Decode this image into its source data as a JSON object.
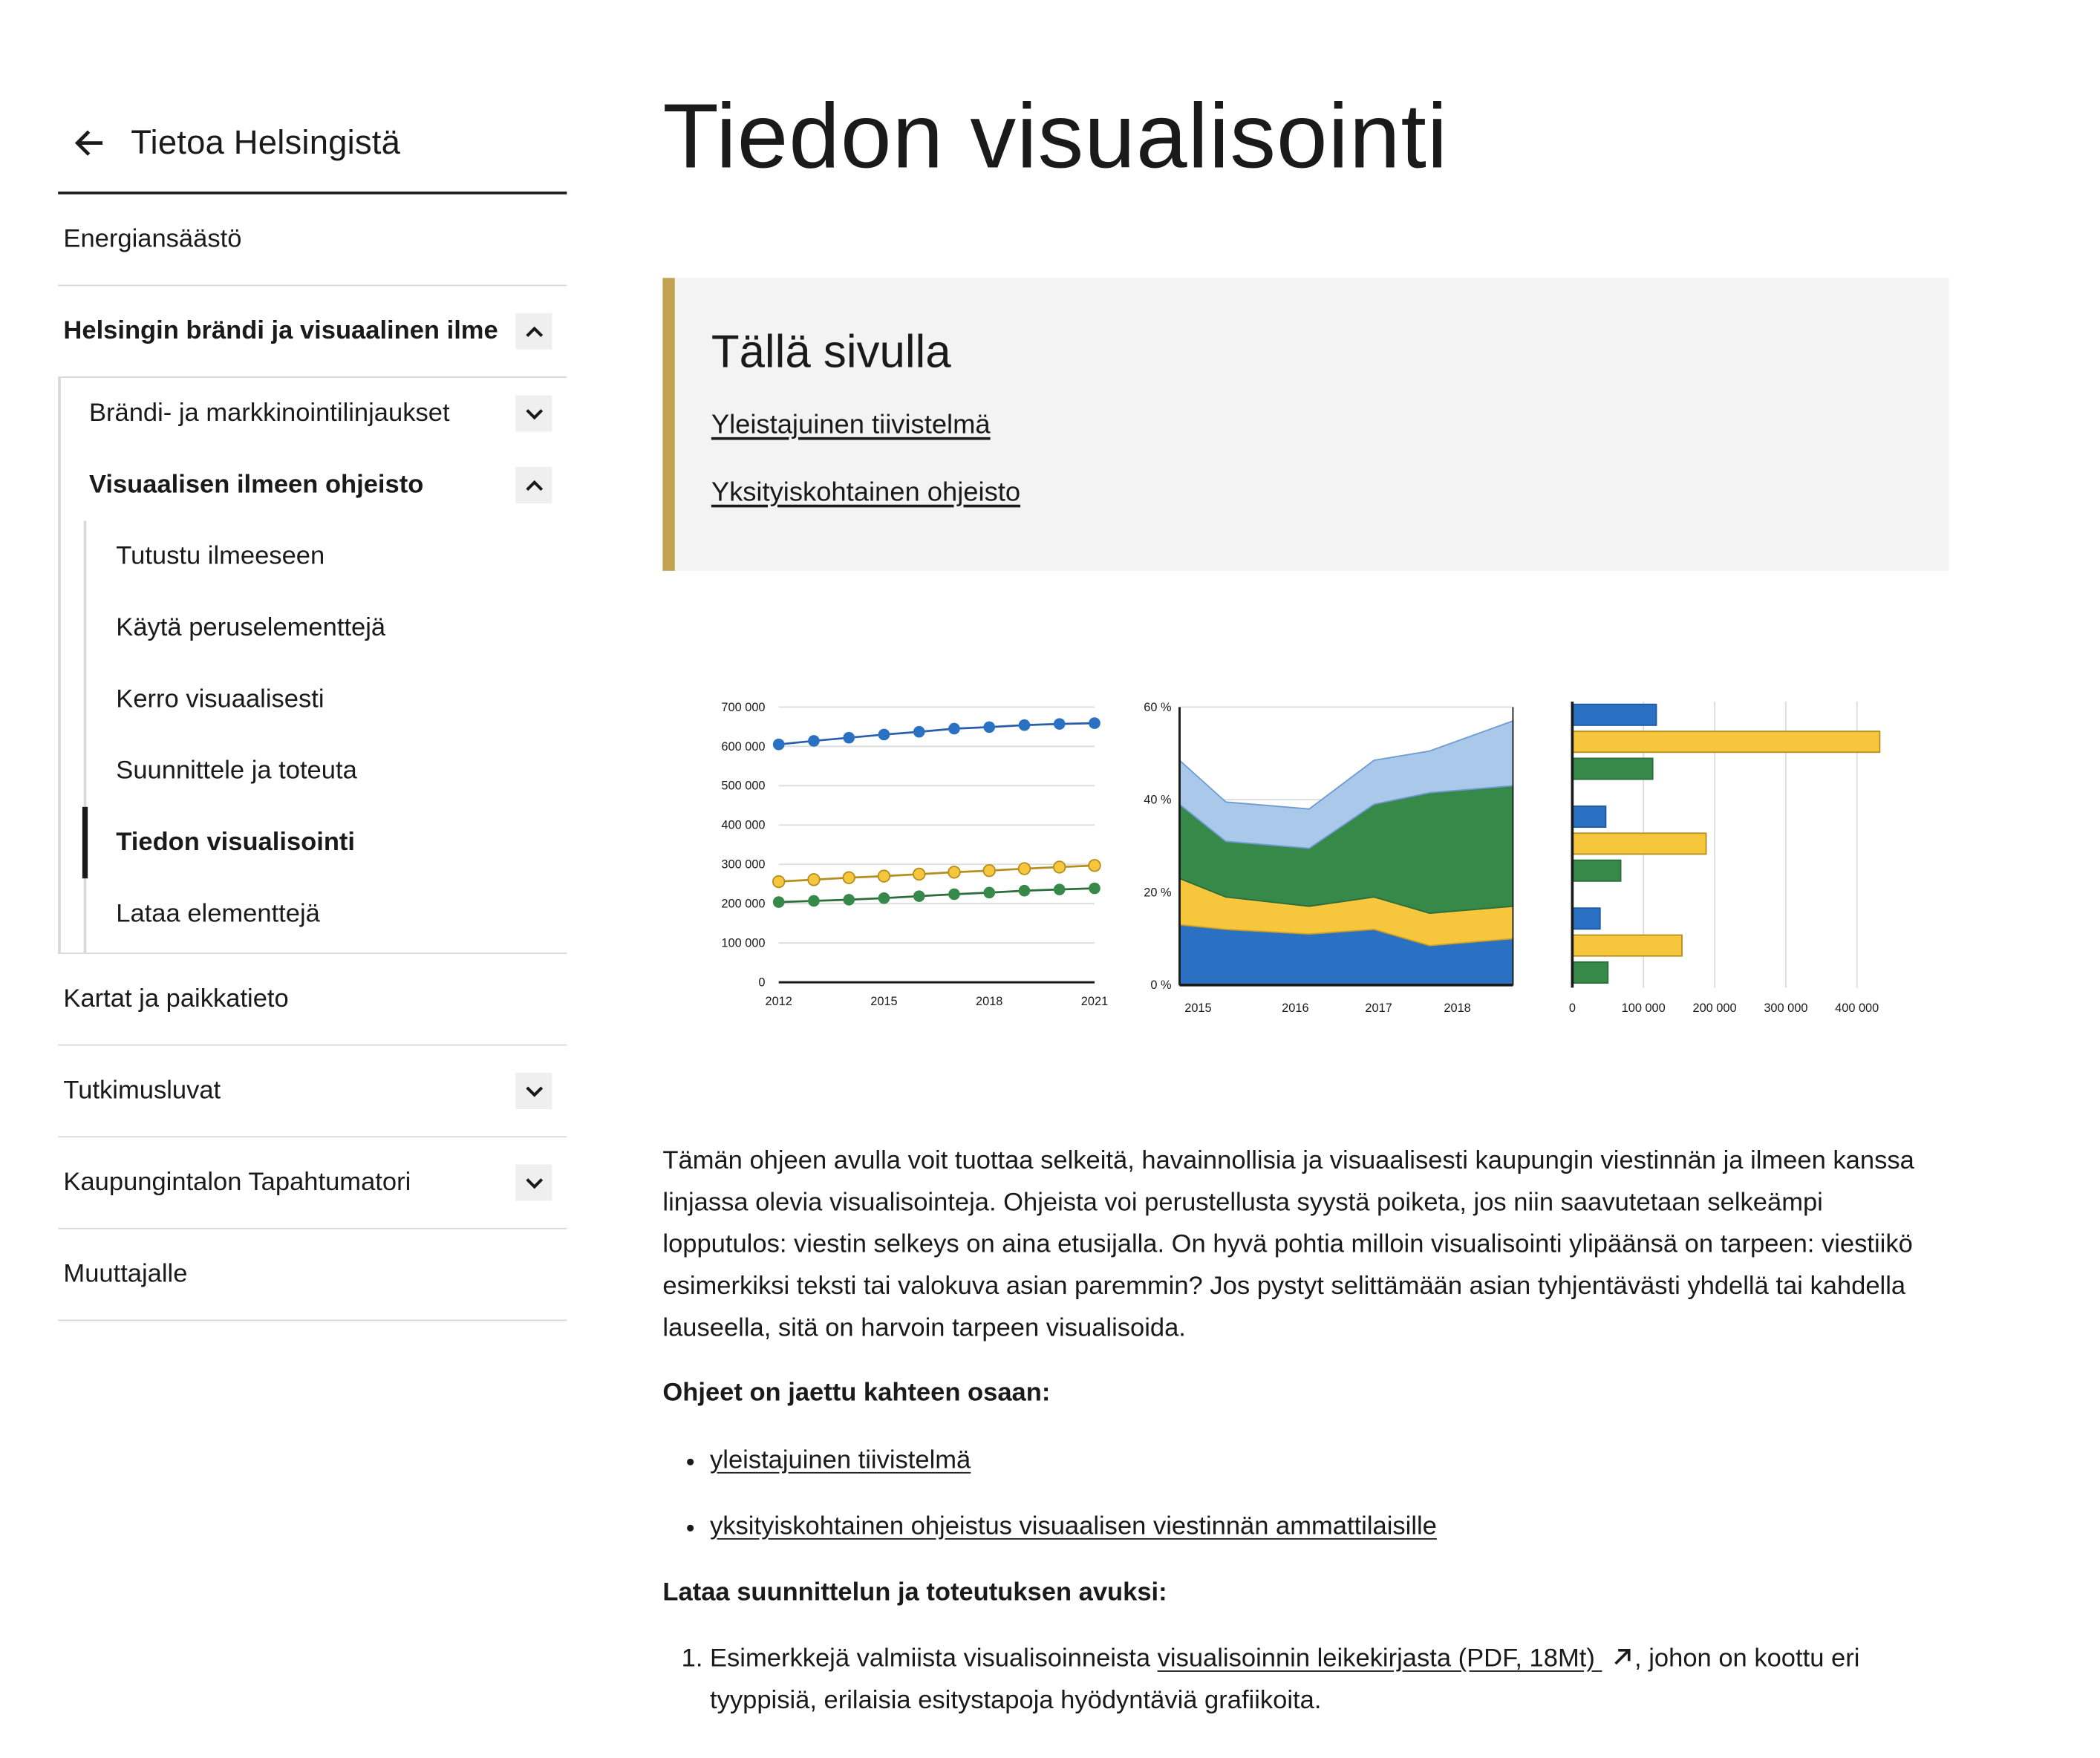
{
  "sidebar": {
    "back_title": "Tietoa Helsingistä",
    "items": [
      {
        "label": "Energiansäästö"
      },
      {
        "label": "Helsingin brändi ja visuaalinen ilme"
      },
      {
        "label": "Kartat ja paikkatieto"
      },
      {
        "label": "Tutkimusluvat"
      },
      {
        "label": "Kaupungintalon Tapahtumatori"
      },
      {
        "label": "Muuttajalle"
      }
    ],
    "sub_items": [
      {
        "label": "Brändi- ja markkinointilinjaukset"
      },
      {
        "label": "Visuaalisen ilmeen ohjeisto"
      }
    ],
    "subsub_items": [
      {
        "label": "Tutustu ilmeeseen"
      },
      {
        "label": "Käytä peruselementtejä"
      },
      {
        "label": "Kerro visuaalisesti"
      },
      {
        "label": "Suunnittele ja toteuta"
      },
      {
        "label": "Tiedon visualisointi"
      },
      {
        "label": "Lataa elementtejä"
      }
    ]
  },
  "main": {
    "title": "Tiedon visualisointi",
    "toc": {
      "title": "Tällä sivulla",
      "links": [
        "Yleistajuinen tiivistelmä",
        "Yksityiskohtainen ohjeisto"
      ]
    },
    "intro": "Tämän ohjeen avulla voit tuottaa selkeitä, havainnollisia ja visuaalisesti kaupungin viestinnän ja ilmeen kanssa linjassa olevia visualisointeja. Ohjeista voi perustellusta syystä poiketa, jos niin saavutetaan selkeämpi lopputulos: viestin selkeys on aina etusijalla. On hyvä pohtia milloin visualisointi ylipäänsä on tarpeen: viestiikö esimerkiksi teksti tai valokuva asian paremmin? Jos pystyt selittämään asian tyhjentävästi yhdellä tai kahdella lauseella, sitä on harvoin tarpeen visualisoida.",
    "heading1": "Ohjeet on jaettu kahteen osaan:",
    "list1": [
      "yleistajuinen tiivistelmä",
      "yksityiskohtainen ohjeistus visuaalisen viestinnän ammattilaisille"
    ],
    "heading2": "Lataa suunnittelun ja toteutuksen avuksi:",
    "ol_item1": {
      "before": "Esimerkkejä valmiista visualisoinneista ",
      "link": "visualisoinnin leikekirjasta (PDF, 18Mt) ",
      "after": ", johon on koottu eri tyyppisiä, erilaisia esitystapoja hyödyntäviä grafiikoita."
    }
  },
  "colors": {
    "blue": "#2a70c3",
    "yellow": "#f6c63c",
    "green": "#37894a",
    "light_blue": "#a9c8ea",
    "accent": "#c2a251"
  },
  "chart_data": [
    {
      "type": "line",
      "x": [
        2012,
        2013,
        2014,
        2015,
        2016,
        2017,
        2018,
        2019,
        2020,
        2021
      ],
      "xticks": [
        "2012",
        "2015",
        "2018",
        "2021"
      ],
      "yticks": [
        "0",
        "100 000",
        "200 000",
        "300 000",
        "400 000",
        "500 000",
        "600 000",
        "700 000"
      ],
      "ylim": [
        0,
        700000
      ],
      "series": [
        {
          "color": "#2a70c3",
          "values": [
            605000,
            614000,
            622000,
            630000,
            637000,
            645000,
            649000,
            654000,
            657000,
            659000
          ]
        },
        {
          "color": "#f6c63c",
          "values": [
            256000,
            261000,
            266000,
            270000,
            275000,
            280000,
            284000,
            289000,
            293000,
            297000
          ]
        },
        {
          "color": "#37894a",
          "values": [
            204000,
            207000,
            210000,
            214000,
            219000,
            224000,
            228000,
            233000,
            236000,
            239000
          ]
        }
      ]
    },
    {
      "type": "area",
      "x": [
        2014.8,
        2015.3,
        2016.2,
        2016.9,
        2017.5,
        2018.4
      ],
      "xticks": [
        "2015",
        "2016",
        "2017",
        "2018"
      ],
      "yticks": [
        "0 %",
        "20 %",
        "40 %",
        "60 %"
      ],
      "ylim": [
        0,
        60
      ],
      "stacked": true,
      "series": [
        {
          "color": "#2a70c3",
          "values": [
            13,
            12,
            11,
            12,
            8.5,
            10
          ]
        },
        {
          "color": "#f6c63c",
          "values": [
            10,
            7,
            6,
            7,
            7,
            7
          ]
        },
        {
          "color": "#37894a",
          "values": [
            16,
            12,
            12.5,
            20,
            26,
            26
          ]
        },
        {
          "color": "#a9c8ea",
          "values": [
            9.5,
            8.5,
            8.5,
            9.5,
            9,
            14
          ]
        }
      ]
    },
    {
      "type": "bar",
      "orientation": "horizontal",
      "xticks": [
        "0",
        "100 000",
        "200 000",
        "300 000",
        "400 000"
      ],
      "xlim": [
        0,
        440000
      ],
      "groups": [
        {
          "values": [
            118000,
            432000,
            113000
          ]
        },
        {
          "values": [
            47000,
            188000,
            68000
          ]
        },
        {
          "values": [
            39000,
            154000,
            50000
          ]
        }
      ],
      "colors": [
        "#2a70c3",
        "#f6c63c",
        "#37894a"
      ]
    }
  ]
}
